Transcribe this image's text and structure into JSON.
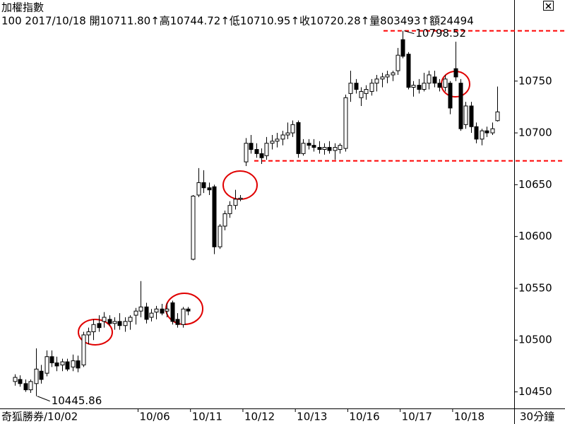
{
  "chart_data": {
    "type": "candlestick",
    "title": "加權指數",
    "info_line": "100 2017/10/18 開10711.80↑高10744.72↑低10710.95↑收10720.28↑量803493↑額24494",
    "bottom_left_label": "奇狐勝券/10/02",
    "period_label": "30分鐘",
    "categories": [
      null,
      null,
      null,
      null,
      null,
      null,
      null,
      null,
      null,
      null,
      null,
      null,
      null,
      null,
      null,
      null,
      null,
      null,
      null,
      null,
      null,
      null,
      null,
      null,
      "10/06",
      null,
      null,
      null,
      null,
      null,
      null,
      null,
      null,
      null,
      "10/11",
      null,
      null,
      null,
      null,
      null,
      null,
      null,
      null,
      null,
      "10/12",
      null,
      null,
      null,
      null,
      null,
      null,
      null,
      null,
      null,
      "10/13",
      null,
      null,
      null,
      null,
      null,
      null,
      null,
      null,
      null,
      "10/16",
      null,
      null,
      null,
      null,
      null,
      null,
      null,
      null,
      null,
      "10/17",
      null,
      null,
      null,
      null,
      null,
      null,
      null,
      null,
      null,
      "10/18",
      null,
      null,
      null,
      null,
      null,
      null,
      null,
      null
    ],
    "open": [
      10460,
      10462,
      10458,
      10452,
      10458,
      10470,
      10468,
      10484,
      10478,
      10476,
      10479,
      10474,
      10480,
      10476,
      10505,
      10508,
      10516,
      10518,
      10520,
      10516,
      10518,
      10514,
      10518,
      10524,
      10528,
      10532,
      10522,
      10527,
      10530,
      10528,
      10536,
      10520,
      10515,
      10530,
      10578,
      10640,
      10652,
      10647,
      10648,
      10590,
      10610,
      10622,
      10630,
      10636,
      10672,
      10690,
      10684,
      10680,
      10678,
      10690,
      10692,
      10694,
      10698,
      10700,
      10710,
      10680,
      10690,
      10688,
      10686,
      10684,
      10686,
      10683,
      10684,
      10685,
      10738,
      10748,
      10734,
      10738,
      10740,
      10748,
      10752,
      10754,
      10756,
      10760,
      10790,
      10776,
      10744,
      10746,
      10742,
      10748,
      10754,
      10748,
      10744,
      10748,
      10762,
      10748,
      10708,
      10726,
      10706,
      10694,
      10702,
      10700,
      10711.8
    ],
    "high": [
      10467,
      10466,
      10462,
      10462,
      10492,
      10476,
      10490,
      10490,
      10484,
      10482,
      10482,
      10486,
      10485,
      10508,
      10512,
      10520,
      10524,
      10527,
      10524,
      10522,
      10526,
      10522,
      10524,
      10531,
      10557,
      10536,
      10530,
      10533,
      10535,
      10536,
      10538,
      10526,
      10532,
      10532,
      10640,
      10666,
      10664,
      10652,
      10650,
      10612,
      10625,
      10634,
      10645,
      10640,
      10695,
      10698,
      10690,
      10685,
      10696,
      10698,
      10700,
      10702,
      10710,
      10712,
      10712,
      10694,
      10694,
      10694,
      10692,
      10690,
      10692,
      10690,
      10690,
      10737,
      10760,
      10752,
      10744,
      10746,
      10752,
      10756,
      10758,
      10760,
      10760,
      10782,
      10798.52,
      10778,
      10750,
      10752,
      10758,
      10760,
      10760,
      10752,
      10756,
      10750,
      10788,
      10752,
      10730,
      10730,
      10710,
      10704,
      10706,
      10710,
      10744.72
    ],
    "low": [
      10456,
      10455,
      10450,
      10449,
      10445.86,
      10458,
      10465,
      10474,
      10470,
      10470,
      10470,
      10470,
      10469,
      10474,
      10496,
      10500,
      10508,
      10512,
      10514,
      10510,
      10510,
      10508,
      10510,
      10515,
      10522,
      10516,
      10518,
      10520,
      10524,
      10522,
      10515,
      10512,
      10512,
      10524,
      10577,
      10638,
      10642,
      10640,
      10583,
      10588,
      10606,
      10618,
      10626,
      10634,
      10668,
      10680,
      10676,
      10670,
      10674,
      10684,
      10686,
      10688,
      10694,
      10696,
      10676,
      10678,
      10684,
      10682,
      10680,
      10679,
      10680,
      10674,
      10680,
      10682,
      10730,
      10738,
      10726,
      10732,
      10736,
      10740,
      10744,
      10748,
      10750,
      10756,
      10772,
      10742,
      10735,
      10738,
      10740,
      10742,
      10744,
      10740,
      10740,
      10718,
      10750,
      10702,
      10704,
      10700,
      10690,
      10688,
      10696,
      10698,
      10710.95
    ],
    "close": [
      10464,
      10458,
      10452,
      10460,
      10472,
      10462,
      10484,
      10478,
      10475,
      10479,
      10472,
      10480,
      10473,
      10505,
      10508,
      10515,
      10512,
      10522,
      10516,
      10518,
      10514,
      10518,
      10522,
      10528,
      10532,
      10520,
      10526,
      10530,
      10526,
      10530,
      10518,
      10515,
      10530,
      10528,
      10639,
      10652,
      10647,
      10645,
      10590,
      10610,
      10622,
      10630,
      10636,
      10637,
      10690,
      10684,
      10680,
      10676,
      10690,
      10692,
      10694,
      10698,
      10700,
      10708,
      10680,
      10690,
      10688,
      10686,
      10684,
      10686,
      10683,
      10686,
      10688,
      10734,
      10748,
      10742,
      10740,
      10742,
      10748,
      10752,
      10754,
      10756,
      10758,
      10775,
      10774,
      10744,
      10746,
      10742,
      10748,
      10756,
      10748,
      10744,
      10752,
      10724,
      10754,
      10704,
      10726,
      10706,
      10694,
      10702,
      10700,
      10704,
      10720.28
    ],
    "up_color": "#ffffff",
    "down_color": "#000000",
    "reference_lines": [
      10798.52,
      10673
    ],
    "reference_color": "#ff0000",
    "ylim": [
      10434,
      10801
    ],
    "yticks": [
      10450,
      10500,
      10550,
      10600,
      10650,
      10700,
      10750
    ],
    "grid": false
  }
}
